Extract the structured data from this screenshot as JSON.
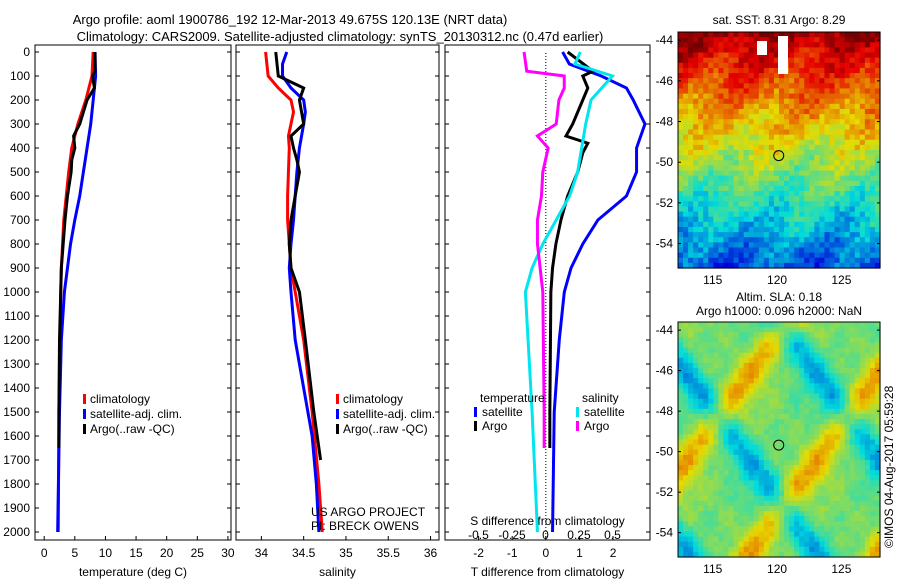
{
  "title_line1": "Argo profile: aoml 1900786_192 12-Mar-2013 49.675S 120.13E (NRT data)",
  "title_line2": "Climatology: CARS2009. Satellite-adjusted climatology: synTS_20130312.nc (0.47d earlier)",
  "credit": "©IMOS 04-Aug-2017 05:59:28",
  "colors": {
    "climatology": "#ff0000",
    "satellite": "#0000ff",
    "argo": "#000000",
    "s_satellite": "#00e5ee",
    "s_argo": "#ff00ff"
  },
  "chart_data": [
    {
      "type": "line",
      "id": "temperature",
      "xlabel": "temperature (deg C)",
      "xlim": [
        -1.5,
        30.5
      ],
      "xticks": [
        0,
        5,
        10,
        15,
        20,
        25,
        30
      ],
      "ylim": [
        0,
        2050
      ],
      "yticks": [
        0,
        100,
        200,
        300,
        400,
        500,
        600,
        700,
        800,
        900,
        1000,
        1100,
        1200,
        1300,
        1400,
        1500,
        1600,
        1700,
        1800,
        1900,
        2000
      ],
      "legend": [
        "climatology",
        "satellite-adj. clim.",
        "Argo(..raw -QC)"
      ],
      "series": [
        {
          "name": "climatology",
          "color": "#ff0000",
          "depth": [
            0,
            100,
            200,
            300,
            400,
            500,
            600,
            700,
            800,
            900,
            1000,
            1200,
            1500,
            2000
          ],
          "values": [
            8.0,
            7.8,
            6.8,
            5.5,
            4.5,
            4.0,
            3.6,
            3.2,
            3.0,
            2.8,
            2.7,
            2.6,
            2.4,
            2.3
          ]
        },
        {
          "name": "satellite-adj. clim.",
          "color": "#0000ff",
          "depth": [
            0,
            100,
            200,
            300,
            400,
            500,
            600,
            700,
            800,
            900,
            1000,
            1200,
            1500,
            2000
          ],
          "values": [
            8.3,
            8.4,
            8.0,
            7.6,
            7.0,
            6.4,
            5.8,
            5.0,
            4.3,
            3.8,
            3.3,
            2.8,
            2.5,
            2.2
          ]
        },
        {
          "name": "Argo(..raw -QC)",
          "color": "#000000",
          "depth": [
            0,
            80,
            100,
            150,
            200,
            300,
            350,
            400,
            450,
            500,
            600,
            700,
            800,
            900,
            1000,
            1200,
            1500,
            1650
          ],
          "values": [
            8.3,
            8.3,
            7.9,
            8.2,
            7.0,
            5.8,
            4.8,
            5.0,
            4.5,
            4.4,
            3.8,
            3.4,
            3.1,
            2.8,
            2.7,
            2.5,
            2.4,
            2.4
          ]
        }
      ]
    },
    {
      "type": "line",
      "id": "salinity",
      "xlabel": "salinity",
      "xlim": [
        33.7,
        36.1
      ],
      "xticks": [
        34,
        34.5,
        35,
        35.5,
        36
      ],
      "ylim": [
        0,
        2050
      ],
      "legend": [
        "climatology",
        "satellite-adj. clim.",
        "Argo(..raw -QC)"
      ],
      "annotation": [
        "US ARGO PROJECT",
        "PI: BRECK OWENS"
      ],
      "series": [
        {
          "name": "climatology",
          "color": "#ff0000",
          "depth": [
            0,
            100,
            150,
            200,
            250,
            300,
            350,
            400,
            500,
            600,
            700,
            800,
            900,
            1000,
            1200,
            1500,
            1800,
            2000
          ],
          "values": [
            34.05,
            34.08,
            34.2,
            34.35,
            34.38,
            34.35,
            34.32,
            34.33,
            34.32,
            34.31,
            34.31,
            34.33,
            34.35,
            34.4,
            34.5,
            34.6,
            34.68,
            34.72
          ]
        },
        {
          "name": "satellite-adj. clim.",
          "color": "#0000ff",
          "depth": [
            0,
            50,
            100,
            150,
            200,
            250,
            300,
            400,
            500,
            600,
            700,
            800,
            900,
            1000,
            1200,
            1400,
            1600,
            1800,
            2000
          ],
          "values": [
            34.3,
            34.25,
            34.25,
            34.35,
            34.5,
            34.52,
            34.5,
            34.45,
            34.42,
            34.4,
            34.38,
            34.35,
            34.33,
            34.35,
            34.4,
            34.5,
            34.6,
            34.65,
            34.68
          ]
        },
        {
          "name": "Argo(..raw -QC)",
          "color": "#000000",
          "depth": [
            0,
            100,
            150,
            200,
            300,
            350,
            400,
            450,
            500,
            600,
            700,
            800,
            900,
            1000,
            1200,
            1500,
            1700
          ],
          "values": [
            34.17,
            34.2,
            34.5,
            34.45,
            34.5,
            34.35,
            34.38,
            34.42,
            34.45,
            34.4,
            34.35,
            34.33,
            34.35,
            34.45,
            34.52,
            34.62,
            34.7
          ]
        }
      ]
    },
    {
      "type": "line",
      "id": "difference",
      "xlabel": "T difference from climatology",
      "x2label": "S difference from climatology",
      "xlim": [
        -3,
        3.1
      ],
      "xticks": [
        -2,
        -1,
        0,
        1,
        2
      ],
      "x2ticks": [
        "-0.5",
        "-0.25",
        "0",
        "0.25",
        "0.5"
      ],
      "x2lim": [
        -0.75,
        0.78
      ],
      "ylim": [
        0,
        2050
      ],
      "legend_titles": [
        "temperature",
        "salinity"
      ],
      "legend": [
        "satellite",
        "Argo",
        "satellite",
        "Argo"
      ],
      "series": [
        {
          "name": "temperature satellite",
          "axis": "T",
          "color": "#0000ff",
          "depth": [
            0,
            50,
            100,
            150,
            200,
            300,
            400,
            500,
            600,
            700,
            800,
            900,
            1000,
            1200,
            1500,
            2000
          ],
          "values": [
            0.5,
            0.7,
            1.65,
            2.4,
            2.6,
            2.95,
            2.7,
            2.7,
            2.4,
            1.55,
            1.1,
            0.75,
            0.55,
            0.4,
            0.25,
            0.2
          ]
        },
        {
          "name": "temperature Argo",
          "axis": "T",
          "color": "#000000",
          "depth": [
            0,
            80,
            100,
            150,
            200,
            300,
            350,
            380,
            420,
            500,
            600,
            700,
            800,
            900,
            1000,
            1500,
            1650
          ],
          "values": [
            0.65,
            1.4,
            1.1,
            1.25,
            1.1,
            0.8,
            0.6,
            1.25,
            1.1,
            0.95,
            0.65,
            0.45,
            0.3,
            0.2,
            0.15,
            0.12,
            0.12
          ]
        },
        {
          "name": "salinity satellite",
          "axis": "S",
          "color": "#00e5ee",
          "depth": [
            0,
            50,
            100,
            200,
            300,
            500,
            600,
            700,
            800,
            900,
            1000,
            1100,
            1500,
            2000
          ],
          "values": [
            0.26,
            0.22,
            0.5,
            0.34,
            0.3,
            0.24,
            0.18,
            0.08,
            -0.02,
            -0.1,
            -0.15,
            -0.14,
            -0.1,
            -0.06
          ]
        },
        {
          "name": "salinity Argo",
          "axis": "S",
          "color": "#ff00ff",
          "depth": [
            0,
            80,
            100,
            150,
            200,
            300,
            350,
            400,
            500,
            600,
            700,
            800,
            1000,
            1500,
            1650
          ],
          "values": [
            -0.16,
            -0.14,
            0.14,
            0.14,
            0.1,
            0.08,
            -0.06,
            0.02,
            -0.02,
            -0.03,
            -0.06,
            -0.06,
            -0.02,
            -0.01,
            -0.01
          ]
        }
      ]
    },
    {
      "type": "heatmap",
      "id": "sst_map",
      "title": "sat. SST: 8.31 Argo: 8.29",
      "xticks": [
        115,
        120,
        125
      ],
      "yticks": [
        -44,
        -46,
        -48,
        -50,
        -52,
        -54
      ],
      "xlim": [
        112.3,
        128
      ],
      "ylim": [
        -55.2,
        -43.6
      ],
      "marker": [
        120.13,
        -49.675
      ]
    },
    {
      "type": "heatmap",
      "id": "sla_map",
      "title": "Altim. SLA: 0.18",
      "subtitle": "Argo h1000: 0.096 h2000: NaN",
      "xticks": [
        115,
        120,
        125
      ],
      "yticks": [
        -44,
        -46,
        -48,
        -50,
        -52,
        -54
      ],
      "xlim": [
        112.3,
        128
      ],
      "ylim": [
        -55.2,
        -43.6
      ],
      "marker": [
        120.13,
        -49.675
      ]
    }
  ]
}
